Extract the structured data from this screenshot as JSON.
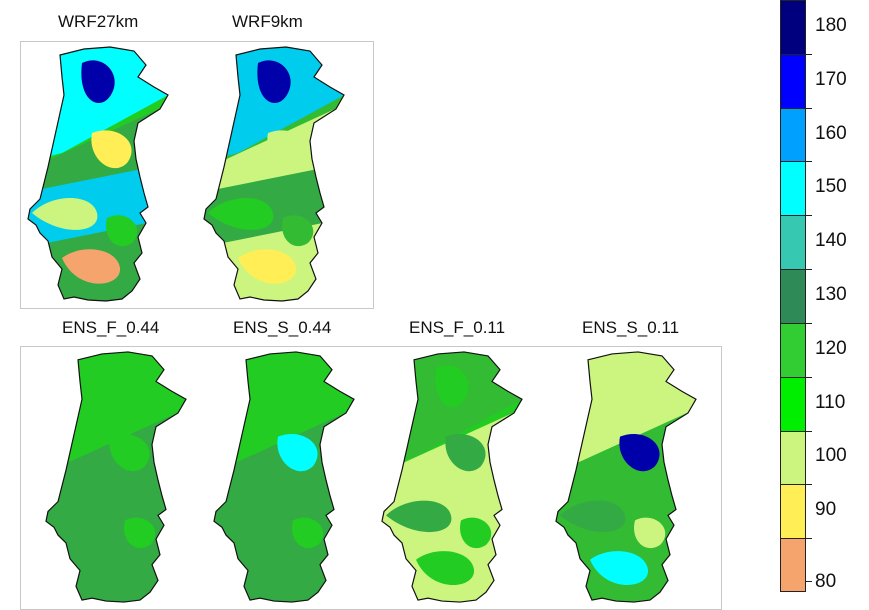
{
  "top_panels": [
    {
      "title": "WRF27km",
      "colors": [
        "#22cc22",
        "#33aa44",
        "#00ffff",
        "#00ccee",
        "#0000aa",
        "#ccf580",
        "#ffee55",
        "#f4a46c"
      ]
    },
    {
      "title": "WRF9km",
      "colors": [
        "#33bb33",
        "#ccf580",
        "#00ccee",
        "#33aa44",
        "#0000aa",
        "#22cc22",
        "#ccf580",
        "#ffee55"
      ]
    }
  ],
  "bottom_panels": [
    {
      "title": "ENS_F_0.44",
      "colors": [
        "#22cc22",
        "#33aa44",
        "#22cc22",
        "#33aa44",
        "#22cc22",
        "#33aa44",
        "#22cc22",
        "#33aa44"
      ]
    },
    {
      "title": "ENS_S_0.44",
      "colors": [
        "#22cc22",
        "#33aa44",
        "#22cc22",
        "#33aa44",
        "#22cc22",
        "#33aa44",
        "#00ffff",
        "#33aa44"
      ]
    },
    {
      "title": "ENS_F_0.11",
      "colors": [
        "#22cc22",
        "#ccf580",
        "#33bb33",
        "#ccf580",
        "#22cc22",
        "#33aa44",
        "#33aa44",
        "#22cc22"
      ]
    },
    {
      "title": "ENS_S_0.11",
      "colors": [
        "#ccf580",
        "#33bb33",
        "#ccf580",
        "#33bb33",
        "#ccf580",
        "#33aa44",
        "#0000aa",
        "#00ffff"
      ]
    }
  ],
  "colorbar": {
    "levels": [
      180,
      170,
      160,
      150,
      140,
      130,
      120,
      110,
      100,
      90,
      80
    ],
    "colors": [
      "#00007f",
      "#0000ff",
      "#00a0ff",
      "#00ffff",
      "#36c8b0",
      "#2e8b57",
      "#32cd32",
      "#00ee00",
      "#ccf580",
      "#ffee55",
      "#f4a46c"
    ]
  }
}
